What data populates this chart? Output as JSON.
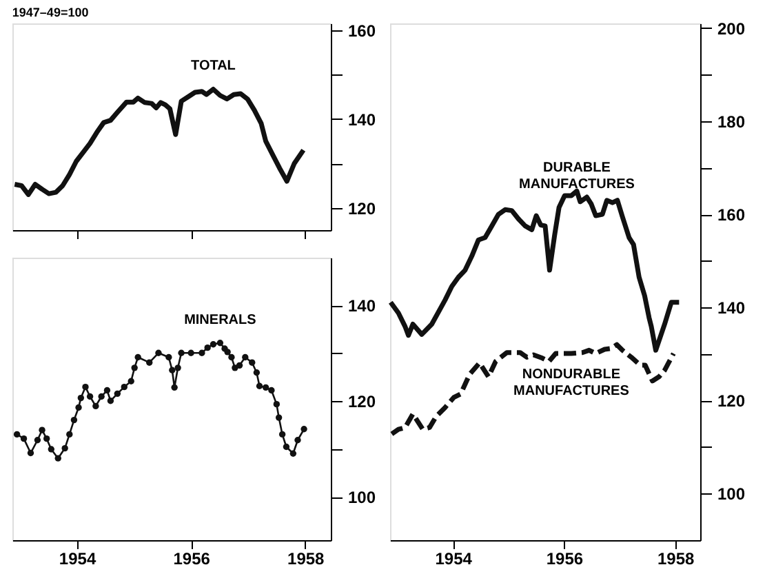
{
  "chart_data": [
    {
      "type": "line",
      "subtitle": "1947–49=100",
      "xlim": [
        1952.87,
        1958.45
      ],
      "xticks": [
        1954,
        1956,
        1958
      ],
      "ylim": [
        115,
        161.5
      ],
      "yticks": [
        120,
        {
          "value": 130,
          "label": null
        },
        140,
        {
          "value": 150,
          "label": null
        },
        160
      ],
      "tick_labels": "y",
      "grid": false,
      "legend": false,
      "marker": "none",
      "line_style": "solid",
      "x": [
        1952.91,
        1953.03,
        1953.15,
        1953.27,
        1953.39,
        1953.51,
        1953.63,
        1953.75,
        1953.87,
        1953.99,
        1954.11,
        1954.23,
        1954.35,
        1954.47,
        1954.59,
        1954.71,
        1954.87,
        1954.99,
        1955.07,
        1955.19,
        1955.31,
        1955.39,
        1955.47,
        1955.55,
        1955.63,
        1955.73,
        1955.83,
        1955.95,
        1956.07,
        1956.19,
        1956.27,
        1956.39,
        1956.51,
        1956.63,
        1956.75,
        1956.87,
        1956.99,
        1957.11,
        1957.23,
        1957.31,
        1957.43,
        1957.55,
        1957.68,
        1957.81,
        1957.97
      ],
      "series": [
        {
          "name": "TOTAL",
          "color": "#111111",
          "values": [
            125.3,
            125,
            123,
            125.3,
            124.2,
            123.2,
            123.5,
            125,
            127.5,
            130.5,
            132.5,
            134.5,
            137,
            139.2,
            139.7,
            141.5,
            143.8,
            143.8,
            144.7,
            143.7,
            143.5,
            142.5,
            143.7,
            143.2,
            142.3,
            136.5,
            144,
            145,
            146,
            146.2,
            145.5,
            146.7,
            145.3,
            144.5,
            145.5,
            145.7,
            144.5,
            142,
            139,
            135,
            132,
            129,
            126,
            130,
            133
          ]
        }
      ]
    },
    {
      "type": "line",
      "xlim": [
        1952.87,
        1958.45
      ],
      "xticks": [
        1954,
        1956,
        1958
      ],
      "ylim": [
        91,
        150
      ],
      "yticks": [
        100,
        {
          "value": 110,
          "label": null
        },
        120,
        {
          "value": 130,
          "label": null
        },
        140
      ],
      "grid": false,
      "legend": false,
      "marker": "circle",
      "line_style": "solid",
      "x": [
        1952.95,
        1953.07,
        1953.19,
        1953.31,
        1953.39,
        1953.47,
        1953.55,
        1953.67,
        1953.79,
        1953.87,
        1953.95,
        1954.03,
        1954.07,
        1954.15,
        1954.23,
        1954.33,
        1954.43,
        1954.53,
        1954.59,
        1954.71,
        1954.83,
        1954.95,
        1955.01,
        1955.07,
        1955.27,
        1955.43,
        1955.61,
        1955.67,
        1955.71,
        1955.77,
        1955.83,
        1956.0,
        1956.19,
        1956.29,
        1956.39,
        1956.51,
        1956.59,
        1956.64,
        1956.71,
        1956.77,
        1956.85,
        1956.95,
        1957.07,
        1957.15,
        1957.2,
        1957.31,
        1957.41,
        1957.5,
        1957.54,
        1957.6,
        1957.67,
        1957.79,
        1957.87,
        1957.98
      ],
      "series": [
        {
          "name": "MINERALS",
          "color": "#111111",
          "values": [
            113.1,
            112.2,
            109.2,
            111.9,
            114,
            112.2,
            110,
            108.1,
            110.2,
            113.1,
            116.1,
            118.7,
            120.7,
            123,
            121,
            119,
            121,
            122.3,
            120.1,
            121.6,
            123,
            124.2,
            127,
            129.2,
            128.1,
            130.1,
            129.2,
            126.5,
            122.9,
            127,
            130.1,
            130.1,
            130.1,
            131.2,
            131.9,
            132.2,
            131,
            130.3,
            129.2,
            127,
            127.5,
            129.2,
            128.1,
            126,
            123.2,
            122.9,
            122.3,
            119.4,
            116.6,
            113.1,
            110.5,
            109.1,
            111.9,
            114.2
          ]
        }
      ]
    },
    {
      "type": "line",
      "xlim": [
        1952.87,
        1958.45
      ],
      "xticks": [
        1954,
        1956,
        1958
      ],
      "ylim": [
        90,
        201
      ],
      "yticks": [
        100,
        {
          "value": 110,
          "label": null
        },
        120,
        {
          "value": 130,
          "label": null
        },
        140,
        {
          "value": 150,
          "label": null
        },
        160,
        {
          "value": 170,
          "label": null
        },
        180,
        {
          "value": 190,
          "label": null
        },
        200
      ],
      "grid": false,
      "legend": false,
      "marker": "none",
      "series": [
        {
          "name": "DURABLE MANUFACTURES",
          "color": "#111111",
          "line_style": "solid",
          "x": [
            1952.88,
            1953.02,
            1953.14,
            1953.2,
            1953.28,
            1953.44,
            1953.62,
            1953.86,
            1953.98,
            1954.1,
            1954.22,
            1954.34,
            1954.46,
            1954.58,
            1954.7,
            1954.82,
            1954.94,
            1955.06,
            1955.18,
            1955.3,
            1955.42,
            1955.5,
            1955.58,
            1955.66,
            1955.74,
            1955.83,
            1955.91,
            1956.01,
            1956.13,
            1956.23,
            1956.29,
            1956.41,
            1956.49,
            1956.57,
            1956.69,
            1956.77,
            1956.87,
            1956.96,
            1957.05,
            1957.17,
            1957.25,
            1957.35,
            1957.45,
            1957.53,
            1957.57,
            1957.65,
            1957.81,
            1957.93,
            1958.07
          ],
          "values": [
            141.1,
            138.8,
            135.9,
            134,
            136.4,
            134.2,
            136.4,
            141.6,
            144.5,
            146.5,
            148,
            151,
            154.5,
            155,
            157.5,
            160,
            161,
            160.8,
            159,
            157.5,
            156.7,
            159.7,
            157.7,
            157.5,
            148,
            155.5,
            161.5,
            164,
            164,
            165,
            162.7,
            163.7,
            162.2,
            159.7,
            160,
            163,
            162.5,
            163,
            159.5,
            155,
            153.5,
            146.5,
            142.5,
            137.8,
            135.9,
            130.8,
            136.4,
            141.1,
            141.1
          ]
        },
        {
          "name": "NONDURABLE MANUFACTURES",
          "color": "#111111",
          "line_style": "dashed",
          "x": [
            1952.9,
            1953.02,
            1953.14,
            1953.28,
            1953.46,
            1953.58,
            1953.7,
            1953.86,
            1954.02,
            1954.14,
            1954.3,
            1954.48,
            1954.64,
            1954.77,
            1954.97,
            1955.21,
            1955.33,
            1955.45,
            1955.61,
            1955.73,
            1955.85,
            1956.13,
            1956.33,
            1956.45,
            1956.57,
            1956.73,
            1956.85,
            1956.95,
            1957.05,
            1957.21,
            1957.37,
            1957.46,
            1957.59,
            1957.71,
            1957.81,
            1957.97
          ],
          "values": [
            112.8,
            113.8,
            114.2,
            117.1,
            113.8,
            114.2,
            116.6,
            118.5,
            120.7,
            121.4,
            125.6,
            128.1,
            125.1,
            128.4,
            130.3,
            130.3,
            129.3,
            129.8,
            129.1,
            128.4,
            130.1,
            130.1,
            130.3,
            130.8,
            130.1,
            131,
            131.2,
            132,
            130.8,
            129.3,
            127.6,
            127.6,
            124.2,
            125.1,
            126.5,
            130.1
          ]
        }
      ]
    }
  ]
}
